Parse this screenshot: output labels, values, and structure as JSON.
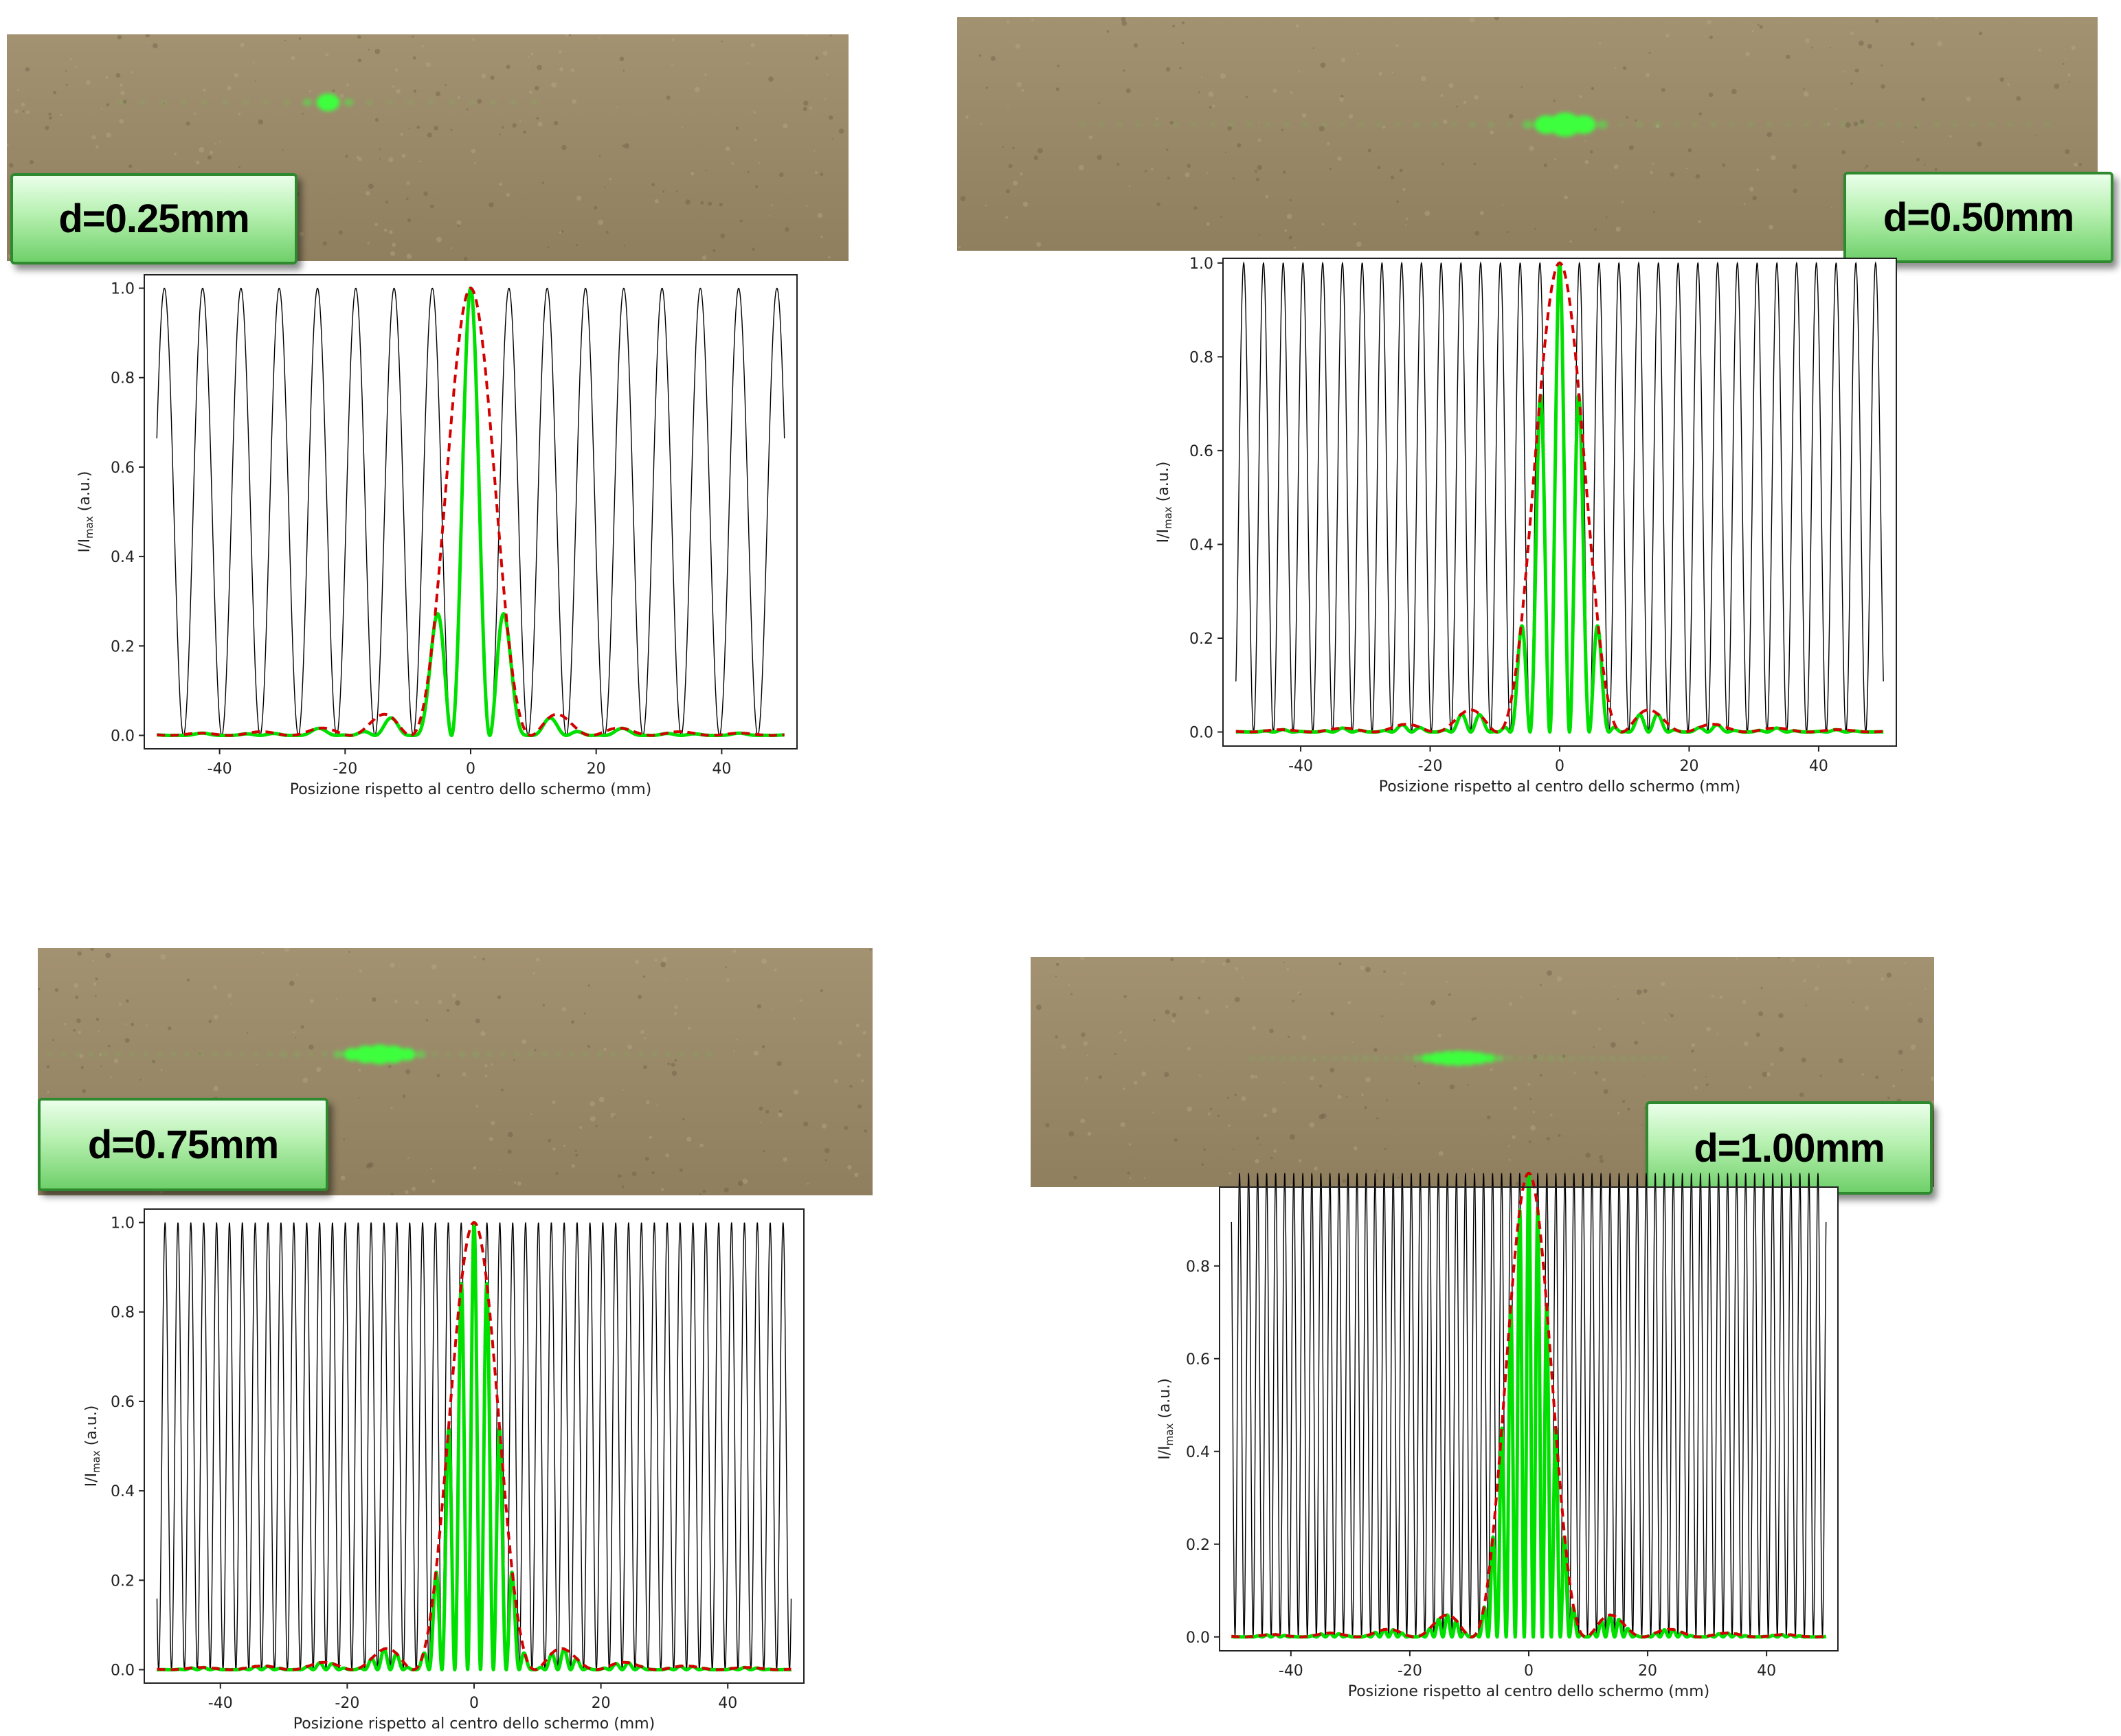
{
  "colors": {
    "fringes": "#000000",
    "pattern": "#00e000",
    "envelope": "#d40000",
    "wall": "#9a8a6a",
    "label_border": "#2f8a2f"
  },
  "charts": [
    {
      "name": "d=0.25mm",
      "label": "d=0.25mm",
      "label_side": "left",
      "fringe_period": 6.1,
      "n_lines": 30
    },
    {
      "name": "d=0.50mm",
      "label": "d=0.50mm",
      "label_side": "right",
      "fringe_period": 3.05,
      "n_lines": 60
    },
    {
      "name": "d=0.75mm",
      "label": "d=0.75mm",
      "label_side": "left",
      "fringe_period": 2.03,
      "n_lines": 90
    },
    {
      "name": "d=1.00mm",
      "label": "d=1.00mm",
      "label_side": "right",
      "fringe_period": 1.52,
      "n_lines": 120
    }
  ],
  "chart_data": [
    {
      "type": "line",
      "title": "",
      "xlabel": "Posizione rispetto al centro dello schermo (mm)",
      "ylabel": "I/I_max (a.u.)",
      "ylabel_main": "I/I",
      "ylabel_sub": "max",
      "ylabel_tail": " (a.u.)",
      "xlim": [
        -52,
        52
      ],
      "ylim": [
        -0.03,
        1.03
      ],
      "xticks": [
        -40,
        -20,
        0,
        20,
        40
      ],
      "yticks": [
        "0.0",
        "0.2",
        "0.4",
        "0.6",
        "0.8",
        "1.0"
      ],
      "ytick_values": [
        0,
        0.2,
        0.4,
        0.6,
        0.8,
        1.0
      ],
      "series": [],
      "slit_separation_mm": 0.25
    },
    {
      "type": "line",
      "title": "",
      "xlabel": "Posizione rispetto al centro dello schermo (mm)",
      "ylabel": "I/I_max (a.u.)",
      "ylabel_main": "I/I",
      "ylabel_sub": "max",
      "ylabel_tail": " (a.u.)",
      "xlim": [
        -52,
        52
      ],
      "ylim": [
        -0.03,
        1.01
      ],
      "xticks": [
        -40,
        -20,
        0,
        20,
        40
      ],
      "yticks": [
        "0.0",
        "0.2",
        "0.4",
        "0.6",
        "0.8",
        "1.0"
      ],
      "ytick_values": [
        0,
        0.2,
        0.4,
        0.6,
        0.8,
        1.0
      ],
      "series": [],
      "slit_separation_mm": 0.5
    },
    {
      "type": "line",
      "title": "",
      "xlabel": "Posizione rispetto al centro dello schermo (mm)",
      "ylabel": "I/I_max (a.u.)",
      "ylabel_main": "I/I",
      "ylabel_sub": "max",
      "ylabel_tail": " (a.u.)",
      "xlim": [
        -52,
        52
      ],
      "ylim": [
        -0.03,
        1.03
      ],
      "xticks": [
        -40,
        -20,
        0,
        20,
        40
      ],
      "yticks": [
        "0.0",
        "0.2",
        "0.4",
        "0.6",
        "0.8",
        "1.0"
      ],
      "ytick_values": [
        0,
        0.2,
        0.4,
        0.6,
        0.8,
        1.0
      ],
      "series": [],
      "slit_separation_mm": 0.75
    },
    {
      "type": "line",
      "title": "",
      "xlabel": "Posizione rispetto al centro dello schermo (mm)",
      "ylabel": "I/I_max (a.u.)",
      "ylabel_main": "I/I",
      "ylabel_sub": "max",
      "ylabel_tail": " (a.u.)",
      "xlim": [
        -52,
        52
      ],
      "ylim": [
        -0.03,
        0.97
      ],
      "xticks": [
        -40,
        -20,
        0,
        20,
        40
      ],
      "yticks": [
        "0.0",
        "0.2",
        "0.4",
        "0.6",
        "0.8"
      ],
      "ytick_values": [
        0,
        0.2,
        0.4,
        0.6,
        0.8
      ],
      "series": [],
      "slit_separation_mm": 1.0
    }
  ]
}
